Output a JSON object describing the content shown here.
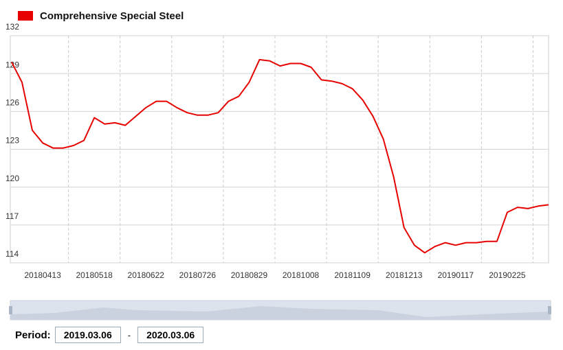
{
  "chart_data": {
    "type": "line",
    "categories": [
      null,
      null,
      null,
      "20180413",
      null,
      null,
      null,
      null,
      "20180518",
      null,
      null,
      null,
      null,
      "20180622",
      null,
      null,
      null,
      null,
      "20180726",
      null,
      null,
      null,
      null,
      "20180829",
      null,
      null,
      null,
      null,
      "20181008",
      null,
      null,
      null,
      null,
      "20181109",
      null,
      null,
      null,
      null,
      "20181213",
      null,
      null,
      null,
      null,
      "20190117",
      null,
      null,
      null,
      null,
      "20190225",
      null,
      null,
      null,
      null
    ],
    "series": [
      {
        "name": "Comprehensive Special Steel",
        "color": "#e60000",
        "values": [
          129.9,
          128.3,
          124.5,
          123.5,
          123.1,
          123.1,
          123.3,
          123.7,
          125.5,
          125.0,
          125.1,
          124.9,
          125.6,
          126.3,
          126.8,
          126.8,
          126.3,
          125.9,
          125.7,
          125.7,
          125.9,
          126.8,
          127.2,
          128.3,
          130.1,
          130.0,
          129.6,
          129.8,
          129.8,
          129.5,
          128.5,
          128.4,
          128.2,
          127.8,
          126.9,
          125.6,
          123.8,
          120.8,
          116.8,
          115.4,
          114.8,
          115.3,
          115.6,
          115.4,
          115.6,
          115.6,
          115.7,
          115.7,
          118.0,
          118.4,
          118.3,
          118.5,
          118.6
        ]
      }
    ],
    "ylim": [
      114,
      132
    ],
    "yticks": [
      114,
      117,
      120,
      123,
      126,
      129,
      132
    ],
    "grid": true
  },
  "period": {
    "label": "Period:",
    "start": "2019.03.06",
    "separator": "-",
    "end": "2020.03.06"
  }
}
